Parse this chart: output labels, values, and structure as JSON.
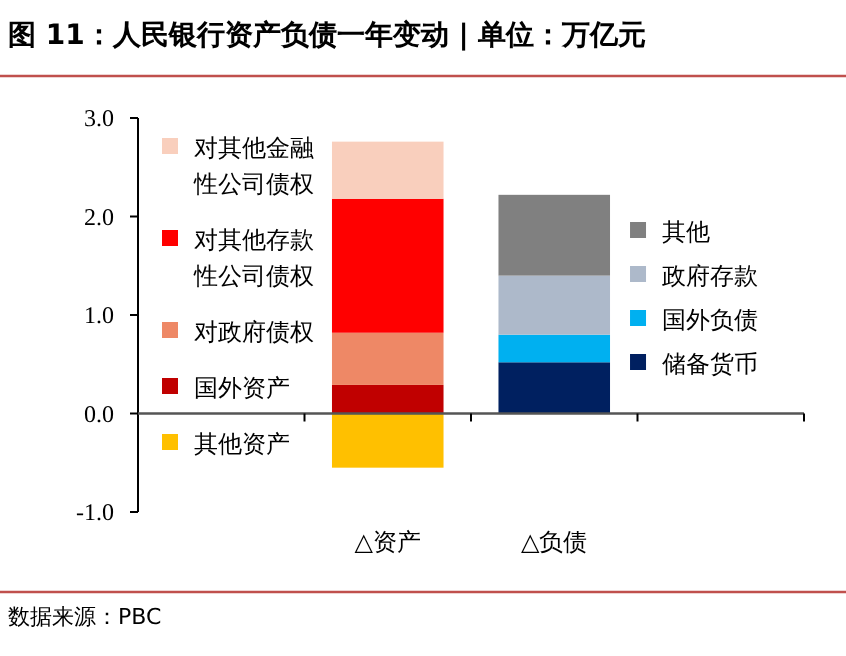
{
  "chart_data": {
    "type": "bar",
    "title": "图 11：人民银行资产负债一年变动 | 单位：万亿元",
    "categories": [
      "△资产",
      "△负债"
    ],
    "stacked": true,
    "series": [
      {
        "name": "其他资产",
        "color": "#ffc000",
        "values": [
          -0.55,
          null
        ]
      },
      {
        "name": "国外资产",
        "color": "#c00000",
        "values": [
          0.29,
          null
        ]
      },
      {
        "name": "对政府债权",
        "color": "#ee8866",
        "values": [
          0.53,
          null
        ]
      },
      {
        "name": "对其他存款性公司债权",
        "color": "#ff0000",
        "values": [
          1.36,
          null
        ]
      },
      {
        "name": "对其他金融性公司债权",
        "color": "#f9cfbd",
        "values": [
          0.58,
          null
        ]
      },
      {
        "name": "储备货币",
        "color": "#002060",
        "values": [
          null,
          0.52
        ]
      },
      {
        "name": "国外负债",
        "color": "#00b0f0",
        "values": [
          null,
          0.28
        ]
      },
      {
        "name": "政府存款",
        "color": "#adb9ca",
        "values": [
          null,
          0.6
        ]
      },
      {
        "name": "其他",
        "color": "#808080",
        "values": [
          null,
          0.82
        ]
      }
    ],
    "ylim": [
      -1,
      3
    ],
    "yticks": [
      {
        "value": -1,
        "label": "-1.0"
      },
      {
        "value": 0,
        "label": "0.0"
      },
      {
        "value": 1,
        "label": "1.0"
      },
      {
        "value": 2,
        "label": "2.0"
      },
      {
        "value": 3,
        "label": "3.0"
      }
    ],
    "legend": "right",
    "annotations": [
      "数据来源：PBC"
    ]
  }
}
